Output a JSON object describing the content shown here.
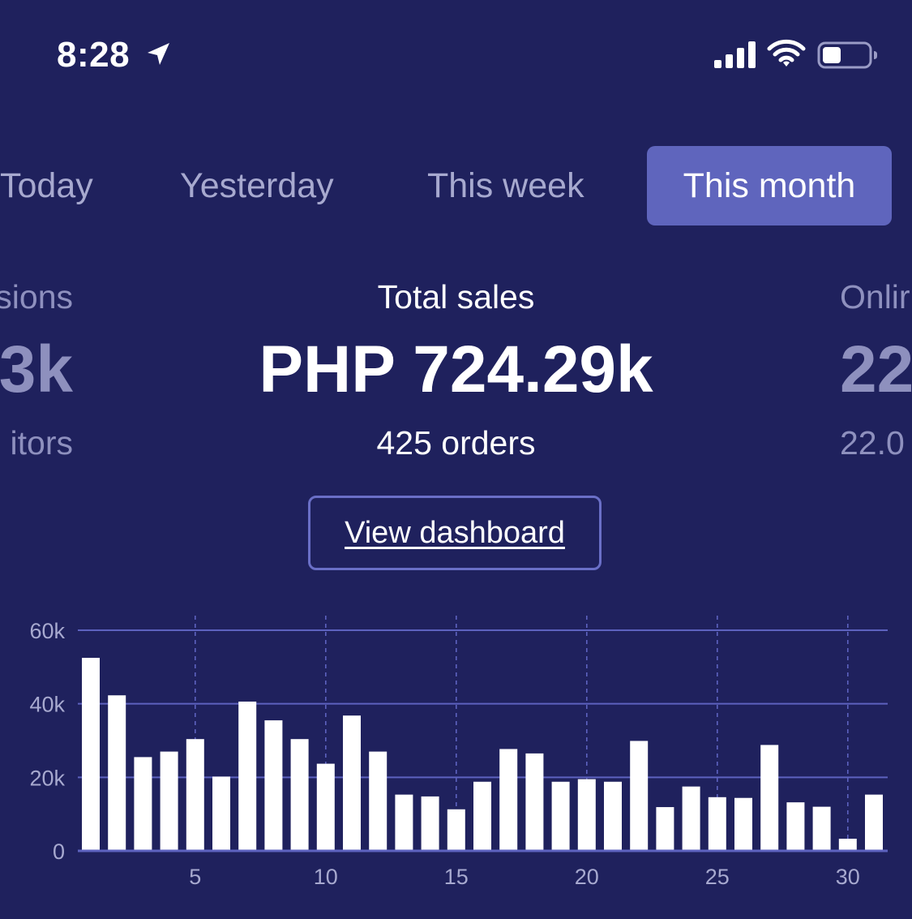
{
  "status_bar": {
    "time": "8:28",
    "icons": [
      "location-arrow-icon",
      "cellular-signal-icon",
      "wifi-icon",
      "battery-icon"
    ]
  },
  "tabs": [
    {
      "label": "Today",
      "active": false
    },
    {
      "label": "Yesterday",
      "active": false
    },
    {
      "label": "This week",
      "active": false
    },
    {
      "label": "This month",
      "active": true
    }
  ],
  "metrics": {
    "left": {
      "label": "sions",
      "value": "3k",
      "sub": "itors"
    },
    "center": {
      "label": "Total sales",
      "value": "PHP 724.29k",
      "sub": "425 orders"
    },
    "right": {
      "label": "Onlir",
      "value": "22",
      "sub": "22.0"
    }
  },
  "dashboard_button": {
    "label": "View dashboard"
  },
  "colors": {
    "background": "#1f215d",
    "active_tab": "#5f65bd",
    "inactive_text": "#a7a9cf",
    "gridline": "#5d62bf",
    "bar": "#ffffff"
  },
  "chart_data": {
    "type": "bar",
    "x": [
      1,
      2,
      3,
      4,
      5,
      6,
      7,
      8,
      9,
      10,
      11,
      12,
      13,
      14,
      15,
      16,
      17,
      18,
      19,
      20,
      21,
      22,
      23,
      24,
      25,
      26,
      27,
      28,
      29,
      30,
      31
    ],
    "values": [
      52500,
      42300,
      25500,
      27000,
      30400,
      20200,
      40600,
      35500,
      30400,
      23700,
      36800,
      27000,
      15300,
      14800,
      11300,
      18800,
      27700,
      26500,
      18800,
      19500,
      18800,
      29900,
      11900,
      17500,
      14600,
      14400,
      28800,
      13200,
      12000,
      3300,
      15300
    ],
    "x_ticks": [
      "5",
      "10",
      "15",
      "20",
      "25",
      "30"
    ],
    "y_ticks": [
      "0",
      "20k",
      "40k",
      "60k"
    ],
    "ylim": [
      0,
      60000
    ],
    "xlim": [
      1,
      31
    ],
    "grid": "horizontal solid, vertical dashed at x ticks",
    "legend": "none"
  }
}
